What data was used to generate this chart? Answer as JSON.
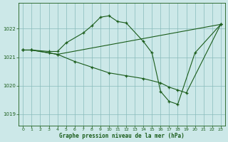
{
  "title": "Graphe pression niveau de la mer (hPa)",
  "background_color": "#cce8e8",
  "plot_bg_color": "#cce8e8",
  "grid_color": "#88bbbb",
  "line_color": "#1a5c1a",
  "xlim": [
    -0.5,
    23.5
  ],
  "ylim": [
    1018.6,
    1022.9
  ],
  "yticks": [
    1019,
    1020,
    1021,
    1022
  ],
  "xticks": [
    0,
    1,
    2,
    3,
    4,
    5,
    6,
    7,
    8,
    9,
    10,
    11,
    12,
    13,
    14,
    15,
    16,
    17,
    18,
    19,
    20,
    21,
    22,
    23
  ],
  "series": [
    {
      "x": [
        0,
        1,
        3,
        4,
        5,
        7,
        8,
        9,
        10,
        11,
        12,
        14,
        15,
        16,
        17,
        18,
        20,
        23
      ],
      "y": [
        1021.25,
        1021.25,
        1021.2,
        1021.2,
        1021.5,
        1021.85,
        1022.1,
        1022.4,
        1022.45,
        1022.25,
        1022.2,
        1021.55,
        1021.15,
        1019.8,
        1019.45,
        1019.35,
        1021.15,
        1022.15
      ]
    },
    {
      "x": [
        0,
        1,
        3,
        4,
        23
      ],
      "y": [
        1021.25,
        1021.25,
        1021.15,
        1021.1,
        1022.15
      ]
    },
    {
      "x": [
        0,
        1,
        3,
        4,
        6,
        8,
        10,
        12,
        14,
        16,
        17,
        18,
        19,
        23
      ],
      "y": [
        1021.25,
        1021.25,
        1021.15,
        1021.1,
        1020.85,
        1020.65,
        1020.45,
        1020.35,
        1020.25,
        1020.1,
        1019.95,
        1019.85,
        1019.75,
        1022.15
      ]
    }
  ]
}
